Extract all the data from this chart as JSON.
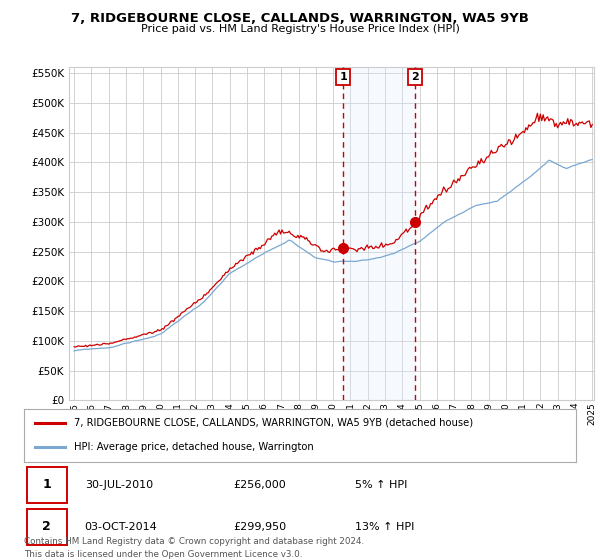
{
  "title": "7, RIDGEBOURNE CLOSE, CALLANDS, WARRINGTON, WA5 9YB",
  "subtitle": "Price paid vs. HM Land Registry's House Price Index (HPI)",
  "legend_line1": "7, RIDGEBOURNE CLOSE, CALLANDS, WARRINGTON, WA5 9YB (detached house)",
  "legend_line2": "HPI: Average price, detached house, Warrington",
  "transaction1_label": "1",
  "transaction1_date": "30-JUL-2010",
  "transaction1_price": 256000,
  "transaction1_pct": "5%",
  "transaction2_label": "2",
  "transaction2_date": "03-OCT-2014",
  "transaction2_price": 299950,
  "transaction2_pct": "13%",
  "footer": "Contains HM Land Registry data © Crown copyright and database right 2024.\nThis data is licensed under the Open Government Licence v3.0.",
  "red_color": "#cc0000",
  "blue_color": "#7aa8d2",
  "shade_color": "#ddeeff",
  "grid_color": "#cccccc",
  "background_color": "#ffffff",
  "ylim": [
    0,
    560000
  ],
  "start_year": 1995,
  "end_year": 2025,
  "transaction1_year": 2010.58,
  "transaction2_year": 2014.75
}
